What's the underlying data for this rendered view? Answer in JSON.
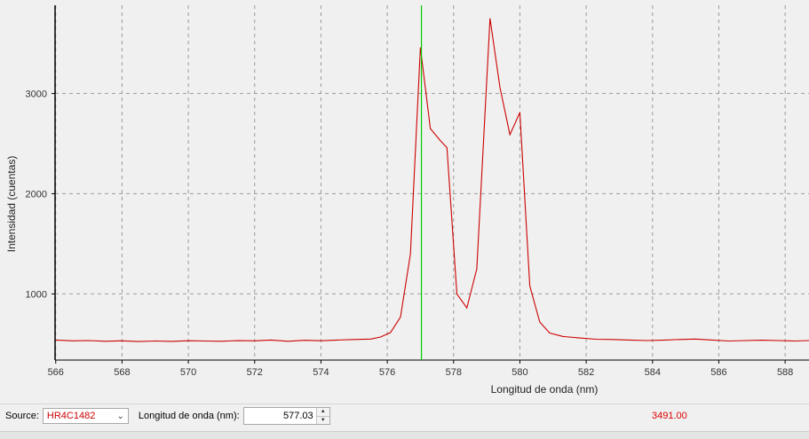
{
  "chart_data": {
    "type": "line",
    "xlabel": "Longitud de onda (nm)",
    "ylabel": "Intensidad (cuentas)",
    "xlim": [
      565.98,
      588.72
    ],
    "ylim": [
      340,
      3880
    ],
    "x_ticks": [
      566,
      568,
      570,
      572,
      574,
      576,
      578,
      580,
      582,
      584,
      586,
      588
    ],
    "y_ticks": [
      1000,
      2000,
      3000
    ],
    "grid": true,
    "legend": "none",
    "line_color": "#cc0000",
    "cursor_color": "#00cc00",
    "cursor_x": 577.03,
    "series": [
      {
        "x": [
          566.0,
          566.5,
          567.0,
          567.5,
          568.0,
          568.5,
          569.0,
          569.5,
          570.0,
          570.5,
          571.0,
          571.5,
          572.0,
          572.5,
          573.0,
          573.5,
          574.0,
          574.5,
          575.0,
          575.5,
          575.8,
          576.1,
          576.4,
          576.7,
          577.0,
          577.3,
          577.6,
          577.8,
          578.1,
          578.4,
          578.7,
          579.1,
          579.4,
          579.7,
          580.0,
          580.3,
          580.6,
          580.9,
          581.3,
          581.8,
          582.3,
          582.8,
          583.3,
          583.8,
          584.3,
          584.8,
          585.3,
          585.8,
          586.3,
          586.8,
          587.3,
          587.8,
          588.3,
          588.72
        ],
        "values": [
          540,
          532,
          535,
          528,
          532,
          525,
          530,
          527,
          533,
          530,
          528,
          534,
          532,
          540,
          528,
          537,
          533,
          540,
          545,
          550,
          570,
          615,
          770,
          1400,
          3460,
          2650,
          2530,
          2460,
          1000,
          860,
          1250,
          3750,
          3060,
          2590,
          2810,
          1080,
          720,
          610,
          575,
          560,
          548,
          545,
          540,
          535,
          538,
          545,
          550,
          540,
          530,
          535,
          538,
          535,
          530,
          535
        ]
      }
    ]
  },
  "footer": {
    "source_label": "Source:",
    "source_value": "HR4C1482",
    "wavelength_label": "Longitud de onda (nm):",
    "wavelength_value": "577.03",
    "readout": "3491.00"
  }
}
